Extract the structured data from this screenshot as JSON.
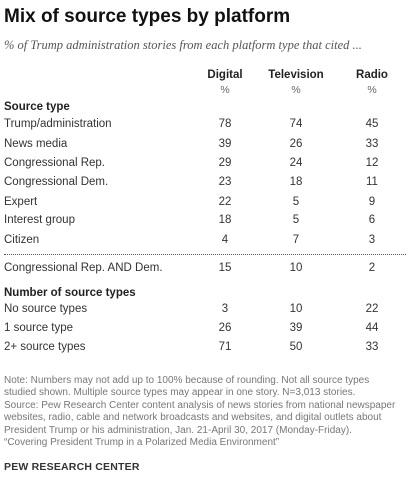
{
  "title": "Mix of source types by platform",
  "subtitle": "% of Trump administration stories from each platform type that cited ...",
  "columns": [
    {
      "name": "Digital",
      "unit": "%"
    },
    {
      "name": "Television",
      "unit": "%"
    },
    {
      "name": "Radio",
      "unit": "%"
    }
  ],
  "sections": {
    "source_type": "Source type",
    "number_of_source_types": "Number of source types"
  },
  "chart_data": {
    "type": "table",
    "title": "Mix of source types by platform",
    "columns": [
      "Digital",
      "Television",
      "Radio"
    ],
    "rows": [
      {
        "label": "Trump/administration",
        "values": [
          78,
          74,
          45
        ]
      },
      {
        "label": "News media",
        "values": [
          39,
          26,
          33
        ]
      },
      {
        "label": "Congressional Rep.",
        "values": [
          29,
          24,
          12
        ]
      },
      {
        "label": "Congressional Dem.",
        "values": [
          23,
          18,
          11
        ]
      },
      {
        "label": "Expert",
        "values": [
          22,
          5,
          9
        ]
      },
      {
        "label": "Interest group",
        "values": [
          18,
          5,
          6
        ]
      },
      {
        "label": "Citizen",
        "values": [
          4,
          7,
          3
        ]
      },
      {
        "label": "Congressional Rep. AND Dem.",
        "values": [
          15,
          10,
          2
        ]
      },
      {
        "label": "No source types",
        "values": [
          3,
          10,
          22
        ]
      },
      {
        "label": "1 source type",
        "values": [
          26,
          39,
          44
        ]
      },
      {
        "label": "2+ source types",
        "values": [
          71,
          50,
          33
        ]
      }
    ]
  },
  "notes": [
    "Note: Numbers may not add up to 100% because of rounding.  Not all source types",
    "studied shown. Multiple source types may appear in one story. N=3,013 stories.",
    "Source: Pew Research Center content analysis of news stories from national newspaper",
    "websites, radio, cable and network broadcasts and websites, and digital outlets about",
    "President Trump or his administration, Jan. 21-April 30, 2017 (Monday-Friday).",
    "“Covering President Trump in a Polarized Media Environment”"
  ],
  "credit": "PEW RESEARCH CENTER"
}
